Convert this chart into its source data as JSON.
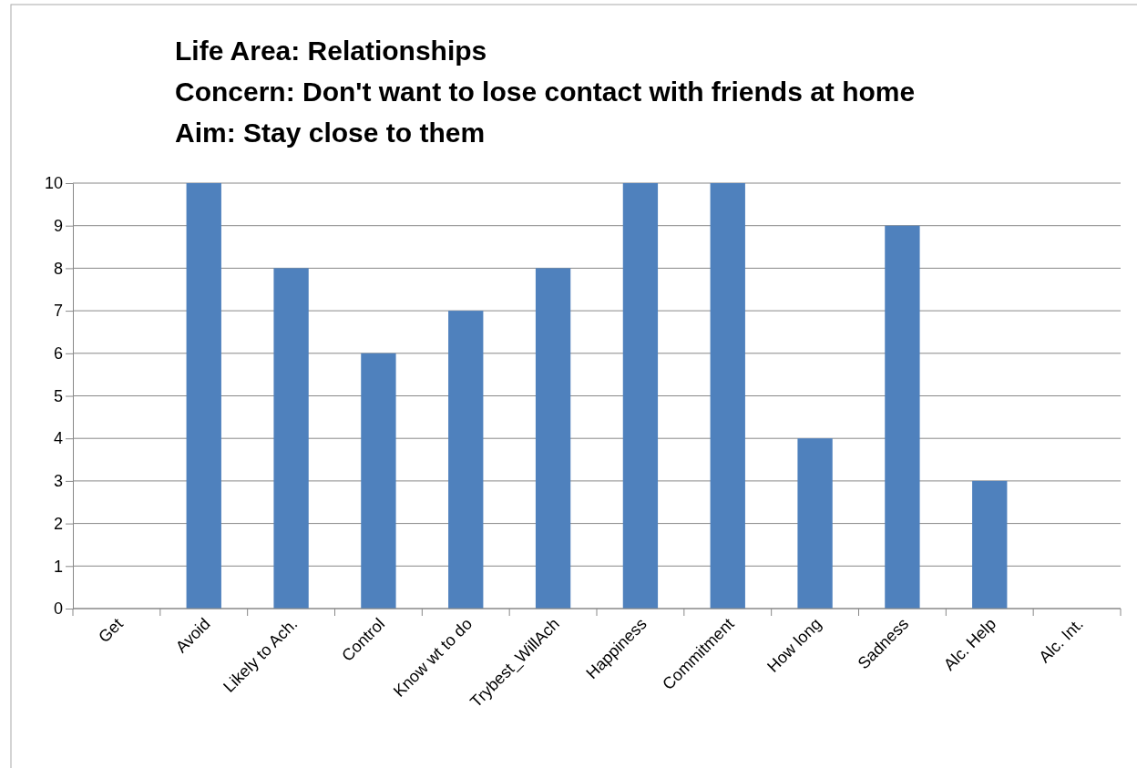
{
  "chart_data": {
    "type": "bar",
    "title": "Life Area: Relationships\nConcern: Don't want to lose contact with friends at home\nAim: Stay close to them",
    "categories": [
      "Get",
      "Avoid",
      "Likely to Ach.",
      "Control",
      "Know wt to do",
      "Trybest_WillAch",
      "Happiness",
      "Commitment",
      "How long",
      "Sadness",
      "Alc. Help",
      "Alc. Int."
    ],
    "values": [
      0,
      10,
      8,
      6,
      7,
      8,
      10,
      10,
      4,
      9,
      3,
      0
    ],
    "color": "#4f81bd",
    "ylim": [
      0,
      10
    ],
    "yticks": [
      0,
      1,
      2,
      3,
      4,
      5,
      6,
      7,
      8,
      9,
      10
    ],
    "grid": "y"
  }
}
